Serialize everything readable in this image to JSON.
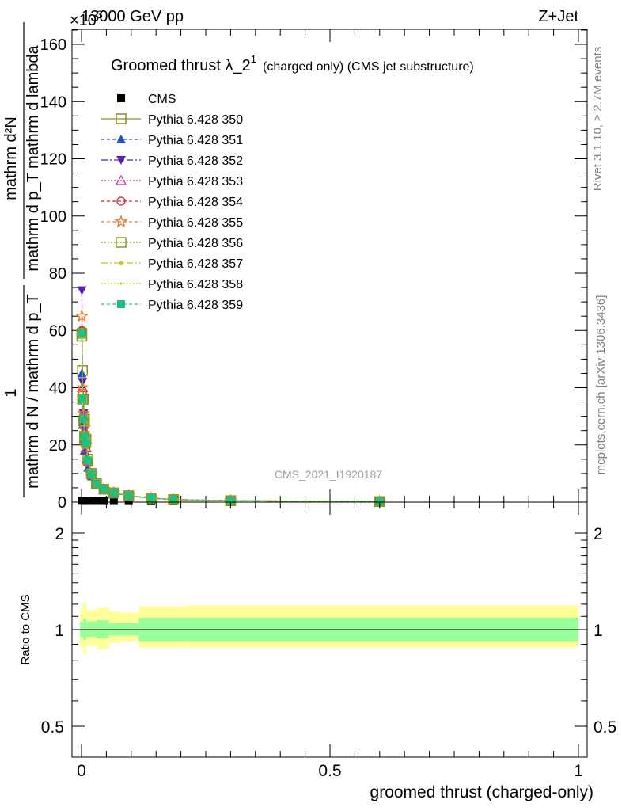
{
  "header": {
    "left": "13000 GeV pp",
    "right": "Z+Jet",
    "exponent": "×10",
    "exponent_power": "3"
  },
  "side_labels": {
    "rivet": "Rivet 3.1.10, ≥ 2.7M events",
    "mcplots": "mcplots.cern.ch [arXiv:1306.3436]"
  },
  "watermark": "CMS_2021_I1920187",
  "plot_title": {
    "main": "Groomed thrust λ_2",
    "sup": "1",
    "sub": "(charged only) (CMS jet substructure)"
  },
  "ylabel": {
    "numerator_one": "1",
    "denominator": "mathrm d N / mathrm d p_T",
    "right_num": "mathrm d²N",
    "right_den": "mathrm d p_T mathrm d lambda"
  },
  "ratio_ylabel": "Ratio to CMS",
  "xlabel": "groomed thrust (charged-only)",
  "colors": {
    "band_outer": "#ffff99",
    "band_inner": "#99ff99",
    "cms": "#000000"
  },
  "chart_data": [
    {
      "type": "line",
      "panel": "main",
      "xlim": [
        -0.02,
        1.0
      ],
      "ylim": [
        0,
        166000
      ],
      "ytick_values": [
        0,
        20000,
        40000,
        60000,
        80000,
        100000,
        120000,
        140000,
        160000
      ],
      "ytick_labels": [
        "0",
        "20",
        "40",
        "60",
        "80",
        "100",
        "120",
        "140",
        "160"
      ],
      "x": [
        0.0007,
        0.002,
        0.004,
        0.006,
        0.009,
        0.013,
        0.02,
        0.03,
        0.045,
        0.065,
        0.095,
        0.14,
        0.185,
        0.3,
        0.6
      ],
      "series": [
        {
          "name": "CMS",
          "color": "#000000",
          "marker": "square-filled",
          "dash": "none",
          "values": [
            500,
            480,
            470,
            460,
            450,
            440,
            430,
            420,
            410,
            400,
            380,
            350,
            320,
            260,
            200
          ]
        },
        {
          "name": "Pythia 6.428 350",
          "color": "#8b8b22",
          "marker": "square-open",
          "dash": "solid",
          "values": [
            58000,
            46000,
            36000,
            29000,
            22000,
            15000,
            10000,
            6500,
            4500,
            3200,
            2200,
            1400,
            900,
            500,
            200
          ]
        },
        {
          "name": "Pythia 6.428 351",
          "color": "#1f4fbf",
          "marker": "triangle-up",
          "dash": "4,3",
          "values": [
            45000,
            27000,
            22000,
            18000,
            15000,
            12000,
            9000,
            6200,
            4400,
            3100,
            2150,
            1380,
            880,
            480,
            200
          ]
        },
        {
          "name": "Pythia 6.428 352",
          "color": "#5b21b6",
          "marker": "triangle-down",
          "dash": "8,3,2,3",
          "values": [
            74000,
            42000,
            31000,
            25000,
            20000,
            14000,
            9800,
            6400,
            4500,
            3200,
            2200,
            1400,
            900,
            500,
            200
          ]
        },
        {
          "name": "Pythia 6.428 353",
          "color": "#c0349c",
          "marker": "triangle-open",
          "dash": "2,2",
          "values": [
            60000,
            40000,
            30000,
            24000,
            19000,
            14000,
            9600,
            6300,
            4450,
            3180,
            2190,
            1400,
            890,
            495,
            200
          ]
        },
        {
          "name": "Pythia 6.428 354",
          "color": "#e0202e",
          "marker": "circle-open",
          "dash": "4,3",
          "values": [
            60000,
            38000,
            29000,
            23500,
            19000,
            14000,
            9600,
            6300,
            4450,
            3180,
            2190,
            1400,
            890,
            495,
            200
          ]
        },
        {
          "name": "Pythia 6.428 355",
          "color": "#f07820",
          "marker": "star-open",
          "dash": "4,3",
          "values": [
            65000,
            40000,
            31000,
            26000,
            20000,
            14500,
            9700,
            6350,
            4480,
            3190,
            2200,
            1400,
            895,
            498,
            200
          ]
        },
        {
          "name": "Pythia 6.428 356",
          "color": "#8b9a1a",
          "marker": "square-open",
          "dash": "2,2",
          "values": [
            59000,
            36000,
            28500,
            23000,
            21000,
            14800,
            9900,
            6450,
            4500,
            3200,
            2200,
            1400,
            900,
            500,
            200
          ]
        },
        {
          "name": "Pythia 6.428 357",
          "color": "#d4c41c",
          "marker": "dot",
          "dash": "8,3,2,3",
          "values": [
            58000,
            36000,
            29000,
            23000,
            20000,
            14500,
            9800,
            6400,
            4500,
            3200,
            2200,
            1400,
            900,
            500,
            200
          ]
        },
        {
          "name": "Pythia 6.428 358",
          "color": "#c4d41c",
          "marker": "dot-small",
          "dash": "2,2",
          "values": [
            58000,
            36000,
            29000,
            23000,
            20000,
            14500,
            9800,
            6400,
            4500,
            3200,
            2200,
            1400,
            900,
            500,
            200
          ]
        },
        {
          "name": "Pythia 6.428 359",
          "color": "#20c080",
          "marker": "square-filled",
          "dash": "4,3",
          "values": [
            59000,
            36000,
            29000,
            23000,
            20500,
            14600,
            9850,
            6420,
            4500,
            3200,
            2200,
            1400,
            900,
            500,
            200
          ]
        }
      ]
    },
    {
      "type": "area",
      "panel": "ratio",
      "ylabel": "Ratio to CMS",
      "xlabel": "groomed thrust (charged-only)",
      "xlim": [
        -0.02,
        1.0
      ],
      "ylim": [
        0.41,
        2.31
      ],
      "scale": "log",
      "xtick_values": [
        0,
        0.5,
        1
      ],
      "xtick_labels": [
        "0",
        "0.5",
        "1"
      ],
      "ytick_values": [
        0.5,
        1,
        2
      ],
      "ytick_labels": [
        "0.5",
        "1",
        "2"
      ],
      "edges": [
        -0.003,
        0.003,
        0.01,
        0.03,
        0.055,
        0.08,
        0.115,
        0.21,
        1.0
      ],
      "outer_lo": [
        0.88,
        0.84,
        0.89,
        0.87,
        0.91,
        0.92,
        0.88,
        0.88
      ],
      "outer_hi": [
        1.16,
        1.22,
        1.15,
        1.17,
        1.14,
        1.13,
        1.18,
        1.19
      ],
      "inner_lo": [
        0.95,
        0.93,
        0.95,
        0.94,
        0.96,
        0.96,
        0.92,
        0.92
      ],
      "inner_hi": [
        1.06,
        1.08,
        1.06,
        1.07,
        1.05,
        1.05,
        1.09,
        1.09
      ],
      "reference": 1
    }
  ]
}
